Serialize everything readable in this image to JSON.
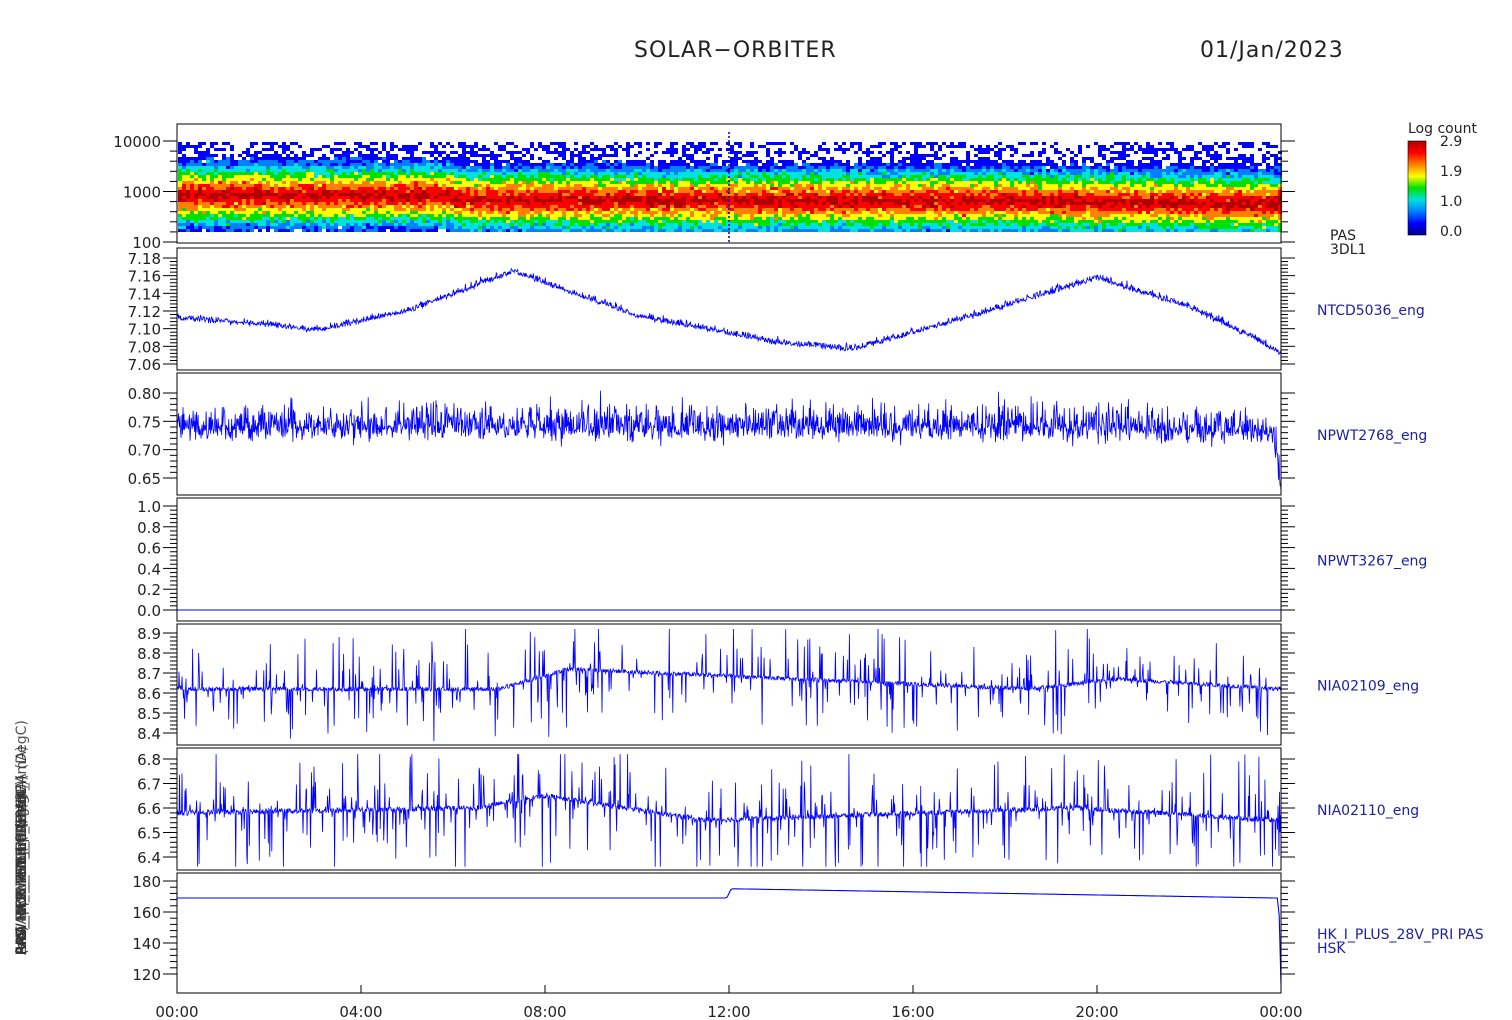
{
  "header": {
    "title": "SOLAR−ORBITER",
    "date": "01/Jan/2023"
  },
  "colorbar": {
    "title": "Log count",
    "ticks": [
      "2.9",
      "1.9",
      "1.0",
      "0.0"
    ],
    "colors": [
      "#00008b",
      "#0000ff",
      "#0080ff",
      "#00e0e0",
      "#00e000",
      "#ffff00",
      "#ff8000",
      "#ff0000",
      "#b00000"
    ]
  },
  "colors": {
    "line": "#0000ff",
    "axis": "#000000",
    "label": "#2020a0"
  },
  "x_axis": {
    "ticks": [
      "00:00",
      "04:00",
      "08:00",
      "12:00",
      "16:00",
      "20:00",
      "00:00"
    ]
  },
  "chart_data": [
    {
      "type": "heatmap",
      "name": "PAS 3DL1",
      "label_lines": [
        "PAS",
        "3DL1"
      ],
      "y_ticks": [
        "10000",
        "1000",
        "100"
      ],
      "ylabel": "(eV)",
      "ylim": [
        100,
        20000
      ],
      "log_scale": true,
      "peak_energy_eV": [
        {
          "hour": 0,
          "value": 900
        },
        {
          "hour": 6,
          "value": 900
        },
        {
          "hour": 6,
          "value": 750
        },
        {
          "hour": 12,
          "value": 700
        },
        {
          "hour": 18,
          "value": 700
        },
        {
          "hour": 24,
          "value": 600
        }
      ]
    },
    {
      "type": "line",
      "name": "NTCD5036_eng",
      "y_ticks": [
        "7.18",
        "7.16",
        "7.14",
        "7.12",
        "7.10",
        "7.08",
        "7.06"
      ],
      "ylim": [
        7.055,
        7.185
      ],
      "x": [
        0,
        2,
        3,
        5,
        7.3,
        10,
        13,
        14.7,
        17,
        20,
        22,
        23.2,
        24
      ],
      "values": [
        7.112,
        7.105,
        7.098,
        7.12,
        7.165,
        7.115,
        7.085,
        7.077,
        7.11,
        7.158,
        7.125,
        7.095,
        7.072
      ]
    },
    {
      "type": "line",
      "name": "NPWT2768_eng",
      "y_ticks": [
        "0.80",
        "0.75",
        "0.70",
        "0.65"
      ],
      "ylim": [
        0.625,
        0.82
      ],
      "x": [
        0,
        6,
        12,
        18,
        23.8,
        24
      ],
      "values": [
        0.74,
        0.742,
        0.74,
        0.742,
        0.735,
        0.64
      ]
    },
    {
      "type": "line",
      "name": "NPWT3267_eng",
      "y_ticks": [
        "1.0",
        "0.8",
        "0.6",
        "0.4",
        "0.2",
        "0.0"
      ],
      "ylim": [
        -0.01,
        1.0
      ],
      "x": [
        0,
        24
      ],
      "values": [
        0.0,
        0.0
      ]
    },
    {
      "type": "line",
      "name": "NIA02109_eng",
      "y_ticks": [
        "8.9",
        "8.8",
        "8.7",
        "8.6",
        "8.5",
        "8.4"
      ],
      "ylim": [
        8.36,
        8.92
      ],
      "x": [
        0,
        7,
        8.5,
        18.5,
        20.5,
        24
      ],
      "values": [
        8.62,
        8.62,
        8.72,
        8.62,
        8.67,
        8.62
      ]
    },
    {
      "type": "line",
      "name": "NIA02110_eng",
      "y_ticks": [
        "6.8",
        "6.7",
        "6.6",
        "6.5",
        "6.4"
      ],
      "ylim": [
        6.36,
        6.82
      ],
      "x": [
        0,
        6.5,
        8,
        11.5,
        19.5,
        24
      ],
      "values": [
        6.58,
        6.6,
        6.65,
        6.55,
        6.6,
        6.55
      ]
    },
    {
      "type": "line",
      "name": "HK_I_PLUS_28V_PRI PAS HSK",
      "label_lines": [
        "HK_I_PLUS_28V_PRI PAS",
        "HSK"
      ],
      "y_ticks": [
        "180",
        "160",
        "140",
        "120"
      ],
      "ylim": [
        110,
        180
      ],
      "x": [
        0,
        11.95,
        12.05,
        23.95,
        24
      ],
      "values": [
        169,
        169,
        175,
        169,
        113
      ]
    }
  ],
  "y_axis_titles": [
    "(nA)",
    "RPW_MON_FT_CUR (mA)",
    "PAS_HK_IMON_EFREMHF (mA)",
    "RPW_LFR_THERM_SPAN_A (DegC)",
    "ANT_PAS_TEMP_2 (mV)",
    "RPW_TDS_ADC_CUR (mA)",
    "EAS_MCP_PS1 (mA)",
    "RPW_LFR_Temp (DegC)",
    "PAS Approx Temp (DegC)",
    "(eV)"
  ]
}
